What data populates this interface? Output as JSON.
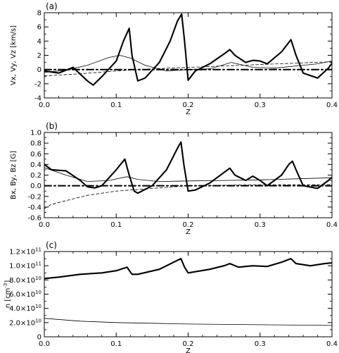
{
  "chart_data": [
    {
      "type": "line",
      "panel_label": "(a)",
      "xlabel": "Z",
      "ylabel": "Vx, Vy, Vz [km/s]",
      "xlim": [
        0.0,
        0.4
      ],
      "ylim": [
        -4,
        8
      ],
      "x_ticks": [
        0.0,
        0.1,
        0.2,
        0.3,
        0.4
      ],
      "x_tick_labels": [
        "0.0",
        "0.1",
        "0.2",
        "0.3",
        "0.4"
      ],
      "y_ticks": [
        -4,
        -2,
        0,
        2,
        4,
        6,
        8
      ],
      "y_tick_labels": [
        "-4",
        "-2",
        "0",
        "2",
        "4",
        "6",
        "8"
      ],
      "grid": false,
      "legend": "none",
      "series": [
        {
          "style": "thick-solid",
          "x": [
            0.0,
            0.02,
            0.04,
            0.06,
            0.068,
            0.08,
            0.1,
            0.11,
            0.118,
            0.122,
            0.13,
            0.14,
            0.16,
            0.175,
            0.185,
            0.191,
            0.195,
            0.2,
            0.21,
            0.23,
            0.25,
            0.258,
            0.265,
            0.28,
            0.29,
            0.3,
            0.31,
            0.33,
            0.343,
            0.35,
            0.36,
            0.38,
            0.395,
            0.4
          ],
          "y": [
            -0.2,
            -0.5,
            0.3,
            -1.6,
            -2.2,
            -1.0,
            1.2,
            4.0,
            5.8,
            2.0,
            -1.6,
            -1.2,
            1.0,
            4.0,
            6.8,
            7.8,
            4.0,
            -1.5,
            -0.2,
            0.8,
            2.2,
            2.8,
            2.0,
            1.0,
            1.3,
            1.2,
            0.8,
            2.5,
            4.2,
            2.0,
            -0.5,
            -1.2,
            0.2,
            0.9
          ]
        },
        {
          "style": "thin-solid",
          "x": [
            0.0,
            0.03,
            0.06,
            0.09,
            0.105,
            0.12,
            0.14,
            0.17,
            0.2,
            0.23,
            0.26,
            0.29,
            0.32,
            0.35,
            0.38,
            0.4
          ],
          "y": [
            -0.4,
            -0.1,
            0.6,
            1.7,
            2.0,
            1.6,
            0.6,
            -0.2,
            0.0,
            0.1,
            1.0,
            0.3,
            0.2,
            0.5,
            0.8,
            1.2
          ]
        },
        {
          "style": "dashed",
          "x": [
            0.0,
            0.05,
            0.1,
            0.15,
            0.2,
            0.25,
            0.3,
            0.35,
            0.4
          ],
          "y": [
            -0.9,
            -0.6,
            -0.2,
            0.1,
            0.3,
            0.5,
            0.7,
            0.9,
            1.1
          ]
        },
        {
          "style": "thick-dash-dot",
          "x": [
            0.0,
            0.1,
            0.2,
            0.3,
            0.4
          ],
          "y": [
            0.0,
            0.0,
            0.0,
            0.0,
            0.0
          ]
        }
      ]
    },
    {
      "type": "line",
      "panel_label": "(b)",
      "xlabel": "Z",
      "ylabel": "Bx, By, Bz [G]",
      "xlim": [
        0.0,
        0.4
      ],
      "ylim": [
        -0.6,
        1.0
      ],
      "x_ticks": [
        0.0,
        0.1,
        0.2,
        0.3,
        0.4
      ],
      "x_tick_labels": [
        "0.0",
        "0.1",
        "0.2",
        "0.3",
        "0.4"
      ],
      "y_ticks": [
        -0.6,
        -0.4,
        -0.2,
        0.0,
        0.2,
        0.4,
        0.6,
        0.8,
        1.0
      ],
      "y_tick_labels": [
        "-0.6",
        "-0.4",
        "-0.2",
        "0.0",
        "0.2",
        "0.4",
        "0.6",
        "0.8",
        "1.0"
      ],
      "grid": false,
      "legend": "none",
      "series": [
        {
          "style": "thick-solid",
          "x": [
            0.0,
            0.01,
            0.03,
            0.05,
            0.06,
            0.07,
            0.08,
            0.1,
            0.112,
            0.118,
            0.125,
            0.13,
            0.15,
            0.17,
            0.185,
            0.19,
            0.194,
            0.2,
            0.21,
            0.23,
            0.25,
            0.258,
            0.265,
            0.28,
            0.29,
            0.3,
            0.31,
            0.33,
            0.34,
            0.345,
            0.35,
            0.36,
            0.38,
            0.395,
            0.4
          ],
          "y": [
            0.4,
            0.3,
            0.28,
            0.1,
            -0.02,
            -0.04,
            0.0,
            0.3,
            0.5,
            0.2,
            -0.1,
            -0.14,
            0.0,
            0.3,
            0.7,
            0.82,
            0.4,
            -0.1,
            -0.08,
            0.05,
            0.25,
            0.33,
            0.2,
            0.1,
            0.18,
            0.1,
            0.0,
            0.2,
            0.4,
            0.46,
            0.3,
            0.0,
            -0.05,
            0.1,
            0.16
          ]
        },
        {
          "style": "thin-solid",
          "x": [
            0.0,
            0.03,
            0.06,
            0.09,
            0.115,
            0.13,
            0.16,
            0.2,
            0.25,
            0.3,
            0.35,
            0.4
          ],
          "y": [
            0.34,
            0.2,
            0.08,
            0.1,
            0.17,
            0.12,
            0.08,
            0.09,
            0.1,
            0.11,
            0.13,
            0.15
          ]
        },
        {
          "style": "dashed",
          "x": [
            0.0,
            0.01,
            0.03,
            0.06,
            0.1,
            0.14,
            0.17,
            0.2,
            0.25,
            0.3,
            0.35,
            0.4
          ],
          "y": [
            -0.43,
            -0.35,
            -0.28,
            -0.18,
            -0.1,
            -0.06,
            -0.03,
            0.0,
            0.01,
            0.02,
            0.02,
            0.02
          ]
        },
        {
          "style": "thick-dash-dot",
          "x": [
            0.0,
            0.1,
            0.2,
            0.3,
            0.4
          ],
          "y": [
            0.0,
            0.0,
            0.0,
            0.0,
            0.0
          ]
        }
      ]
    },
    {
      "type": "line",
      "panel_label": "(c)",
      "xlabel": "Z",
      "ylabel": "n [cm^-3]",
      "xlim": [
        0.0,
        0.4
      ],
      "ylim": [
        0,
        120000000000.0
      ],
      "x_ticks": [
        0.0,
        0.1,
        0.2,
        0.3,
        0.4
      ],
      "x_tick_labels": [
        "0.0",
        "0.1",
        "0.2",
        "0.3",
        "0.4"
      ],
      "y_ticks": [
        0,
        20000000000.0,
        40000000000.0,
        60000000000.0,
        80000000000.0,
        100000000000.0,
        120000000000.0
      ],
      "y_tick_labels": [
        "0",
        "2.0×10^10",
        "4.0×10^10",
        "6.0×10^10",
        "8.0×10^10",
        "1.0×10^11",
        "1.2×10^11"
      ],
      "grid": false,
      "legend": "none",
      "series": [
        {
          "style": "thick-solid",
          "x": [
            0.0,
            0.02,
            0.05,
            0.08,
            0.1,
            0.115,
            0.122,
            0.13,
            0.16,
            0.18,
            0.19,
            0.195,
            0.2,
            0.23,
            0.25,
            0.258,
            0.27,
            0.29,
            0.31,
            0.33,
            0.343,
            0.35,
            0.37,
            0.39,
            0.4
          ],
          "y": [
            82000000000.0,
            84000000000.0,
            88000000000.0,
            90000000000.0,
            93000000000.0,
            98000000000.0,
            88000000000.0,
            88000000000.0,
            95000000000.0,
            105000000000.0,
            110000000000.0,
            98000000000.0,
            90000000000.0,
            95000000000.0,
            100000000000.0,
            103000000000.0,
            98000000000.0,
            100000000000.0,
            99000000000.0,
            105000000000.0,
            110000000000.0,
            103000000000.0,
            100000000000.0,
            103000000000.0,
            104000000000.0
          ]
        },
        {
          "style": "thin-solid",
          "x": [
            0.0,
            0.05,
            0.1,
            0.15,
            0.2,
            0.25,
            0.3,
            0.35,
            0.4
          ],
          "y": [
            26000000000.0,
            22000000000.0,
            20000000000.0,
            19000000000.0,
            18000000000.0,
            17500000000.0,
            17000000000.0,
            16500000000.0,
            16000000000.0
          ]
        }
      ]
    }
  ]
}
